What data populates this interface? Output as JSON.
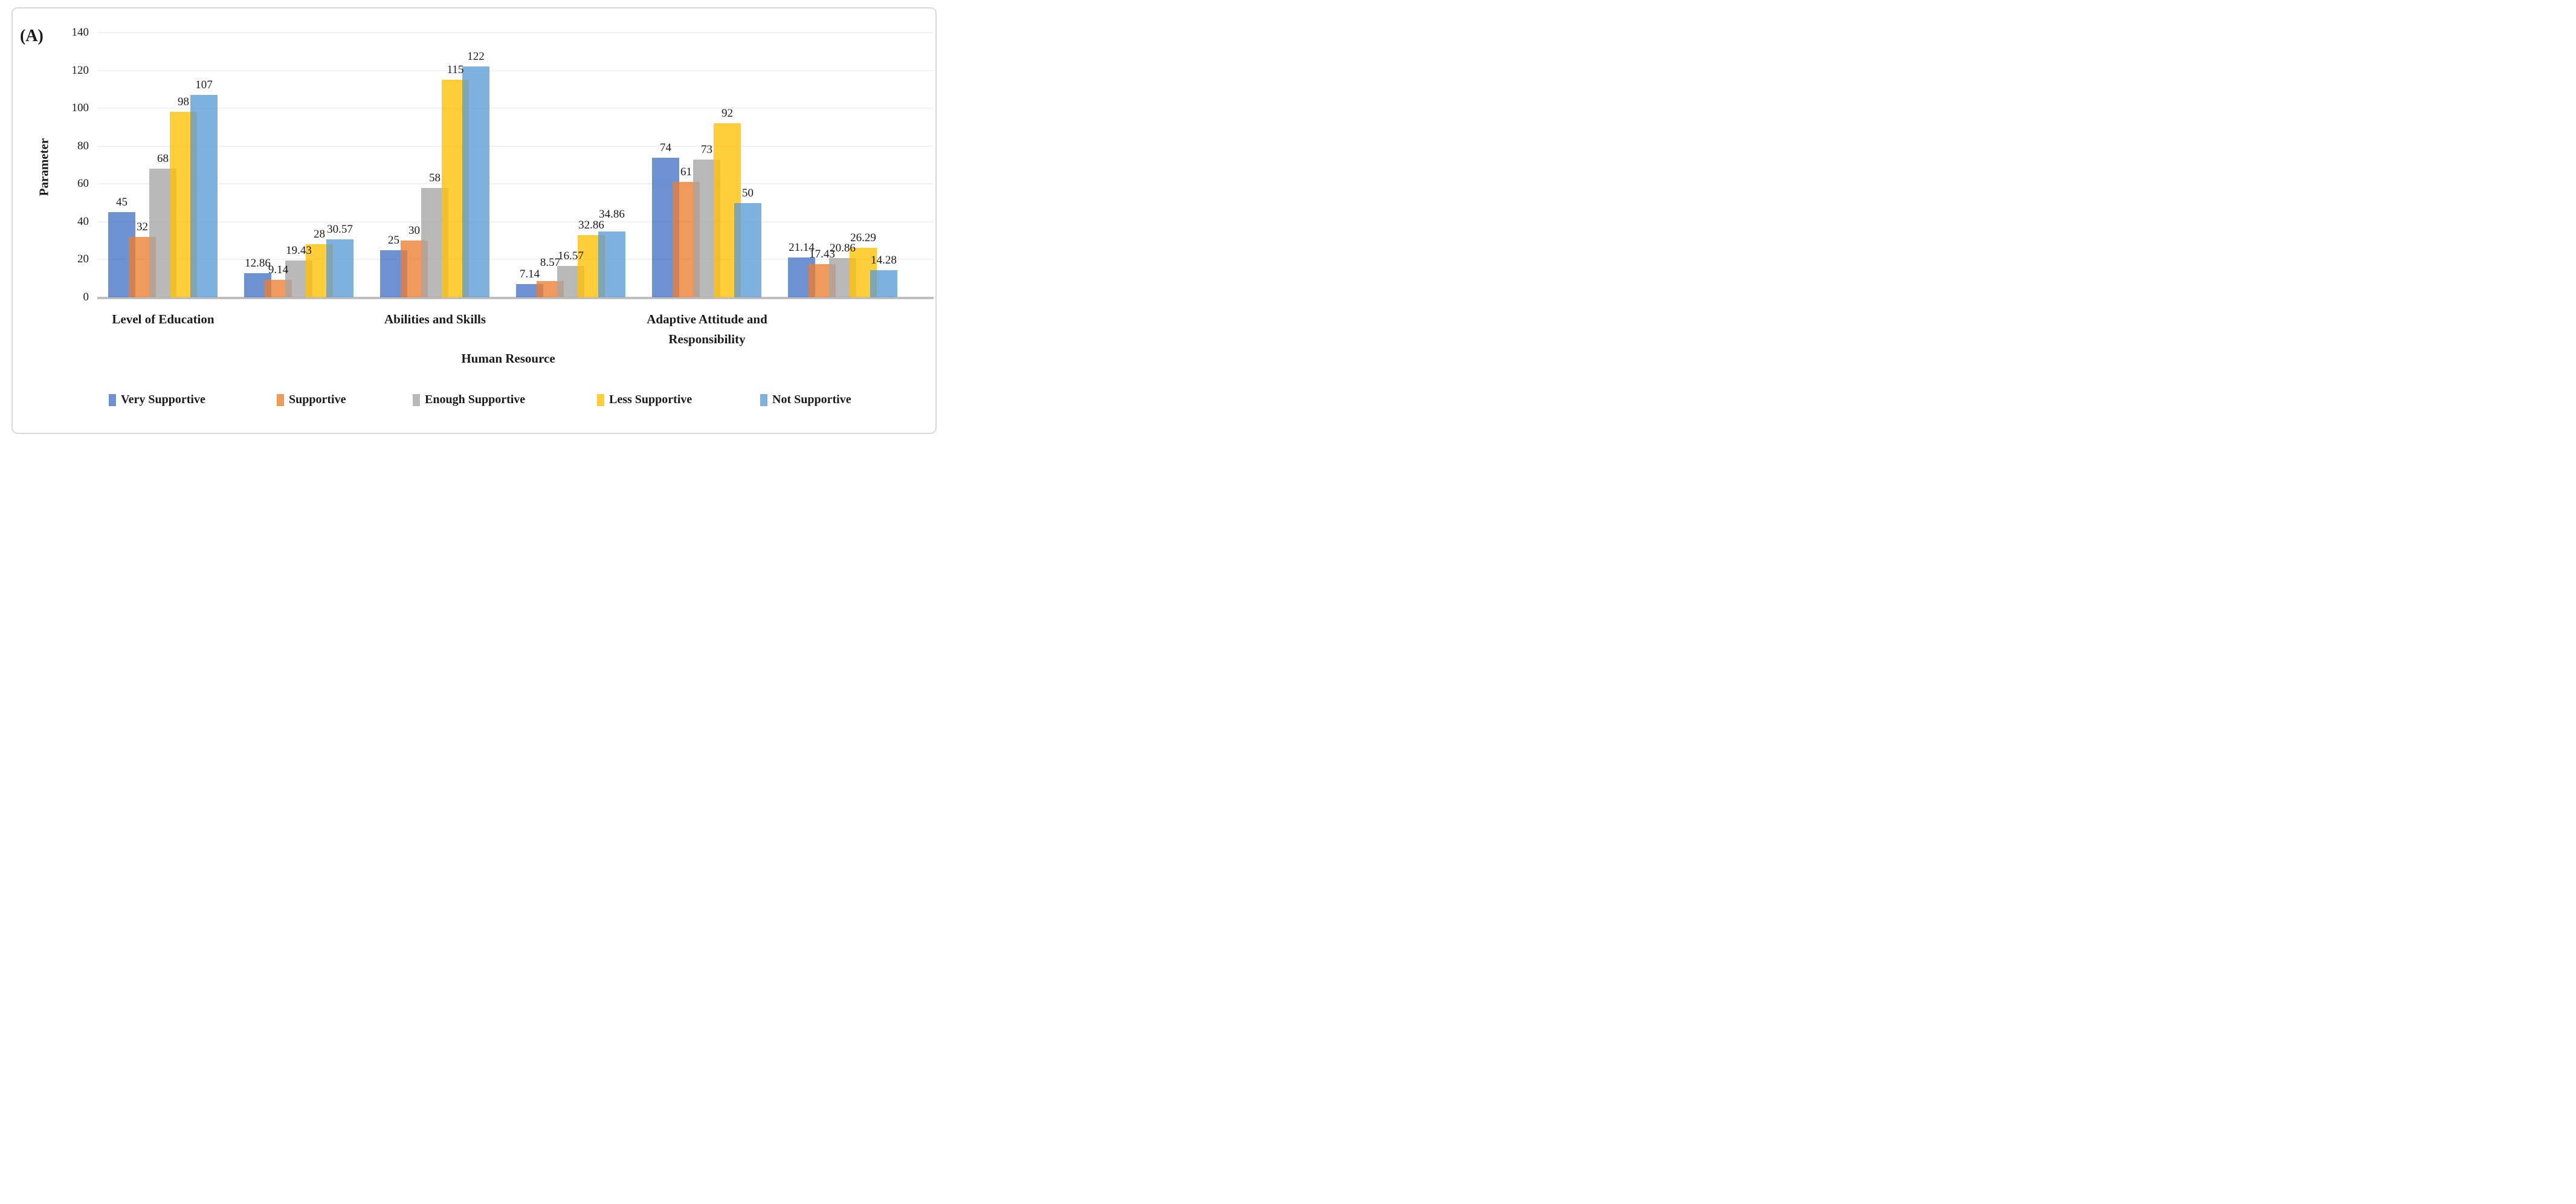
{
  "chart_data": {
    "type": "bar",
    "panel_label": "(A)",
    "title": "",
    "xlabel": "Human Resource",
    "ylabel": "Parameter",
    "ylim": [
      0,
      140
    ],
    "yticks": [
      0,
      20,
      40,
      60,
      80,
      100,
      120,
      140
    ],
    "grid": "horizontal",
    "legend_position": "bottom",
    "categories": [
      "Level of Education",
      "Abilities and Skills",
      "Adaptive Attitude and Responsibility"
    ],
    "clusters_per_category": 2,
    "series": [
      {
        "name": "Very Supportive",
        "color": "#4472C4",
        "values": [
          45,
          12.86,
          25,
          7.14,
          74,
          21.14
        ]
      },
      {
        "name": "Supportive",
        "color": "#ED7D31",
        "values": [
          32,
          9.14,
          30,
          8.57,
          61,
          17.43
        ]
      },
      {
        "name": "Enough Supportive",
        "color": "#A5A5A5",
        "values": [
          68,
          19.43,
          58,
          16.57,
          73,
          20.86
        ]
      },
      {
        "name": "Less Supportive",
        "color": "#FFC000",
        "values": [
          98,
          28,
          115,
          32.86,
          92,
          26.29
        ]
      },
      {
        "name": "Not Supportive",
        "color": "#5B9BD5",
        "values": [
          107,
          30.57,
          122,
          34.86,
          50,
          14.28
        ]
      }
    ],
    "value_labels": true,
    "axis_line_color": "#BFBFBF",
    "gridline_color": "#F1F1F1",
    "border_color": "#D9D9D9"
  }
}
